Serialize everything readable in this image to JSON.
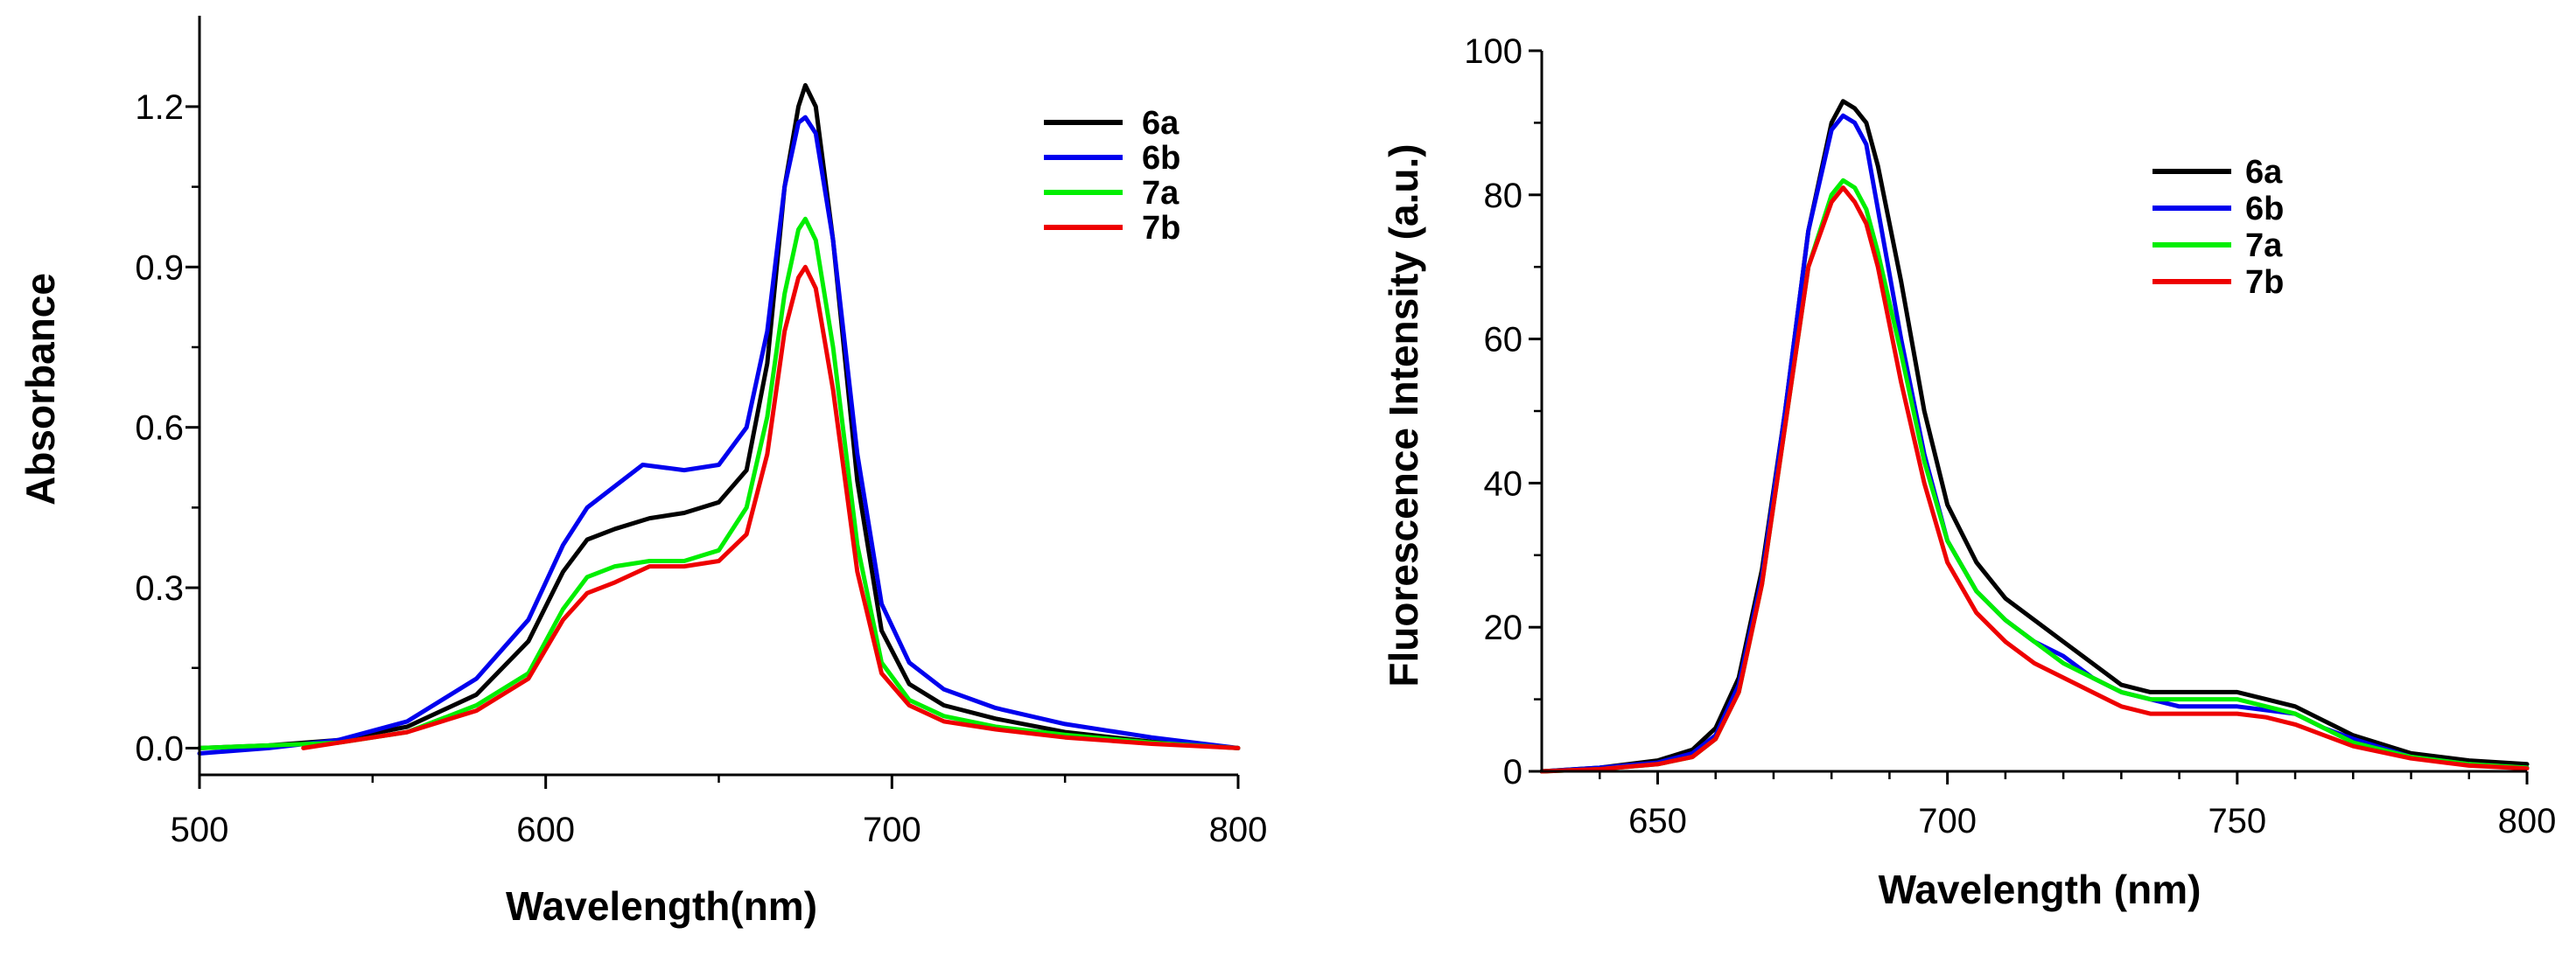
{
  "chart_data": [
    {
      "id": "absorbance",
      "type": "line",
      "title": "",
      "xlabel": "Wavelength(nm)",
      "ylabel": "Absorbance",
      "xlim": [
        500,
        800
      ],
      "ylim": [
        -0.05,
        1.37
      ],
      "xticks": [
        500,
        600,
        700,
        800
      ],
      "xtick_labels": [
        "500",
        "600",
        "700",
        "800"
      ],
      "xminor": [
        550,
        650,
        750
      ],
      "yticks": [
        0.0,
        0.3,
        0.6,
        0.9,
        1.2
      ],
      "ytick_labels": [
        "0.0",
        "0.3",
        "0.6",
        "0.9",
        "1.2"
      ],
      "yminor": [
        0.15,
        0.45,
        0.75,
        1.05
      ],
      "legend_position": "top-right",
      "grid": false,
      "series": [
        {
          "name": "6a",
          "color": "#000000",
          "x": [
            500,
            520,
            540,
            560,
            580,
            595,
            605,
            612,
            620,
            630,
            640,
            650,
            658,
            664,
            669,
            673,
            675,
            678,
            683,
            690,
            697,
            705,
            715,
            730,
            750,
            775,
            800
          ],
          "y": [
            0.0,
            0.005,
            0.015,
            0.04,
            0.1,
            0.2,
            0.33,
            0.39,
            0.41,
            0.43,
            0.44,
            0.46,
            0.52,
            0.72,
            1.05,
            1.2,
            1.24,
            1.2,
            0.95,
            0.5,
            0.22,
            0.12,
            0.08,
            0.055,
            0.03,
            0.012,
            0.0
          ]
        },
        {
          "name": "6b",
          "color": "#0000ee",
          "x": [
            500,
            520,
            540,
            560,
            580,
            595,
            605,
            612,
            620,
            628,
            640,
            650,
            658,
            664,
            669,
            673,
            675,
            678,
            683,
            690,
            697,
            705,
            715,
            730,
            750,
            775,
            800
          ],
          "y": [
            -0.01,
            0.0,
            0.015,
            0.05,
            0.13,
            0.24,
            0.38,
            0.45,
            0.49,
            0.53,
            0.52,
            0.53,
            0.6,
            0.78,
            1.05,
            1.17,
            1.18,
            1.15,
            0.95,
            0.55,
            0.27,
            0.16,
            0.11,
            0.075,
            0.045,
            0.02,
            0.0
          ]
        },
        {
          "name": "7a",
          "color": "#00ee00",
          "x": [
            500,
            520,
            540,
            560,
            580,
            595,
            605,
            612,
            620,
            630,
            640,
            650,
            658,
            664,
            669,
            673,
            675,
            678,
            683,
            690,
            697,
            705,
            715,
            730,
            750,
            775,
            800
          ],
          "y": [
            0.0,
            0.005,
            0.01,
            0.03,
            0.08,
            0.14,
            0.26,
            0.32,
            0.34,
            0.35,
            0.35,
            0.37,
            0.45,
            0.62,
            0.85,
            0.97,
            0.99,
            0.95,
            0.75,
            0.38,
            0.16,
            0.09,
            0.06,
            0.04,
            0.025,
            0.01,
            0.0
          ]
        },
        {
          "name": "7b",
          "color": "#ee0000",
          "x": [
            530,
            540,
            560,
            580,
            595,
            605,
            612,
            620,
            630,
            640,
            650,
            658,
            664,
            669,
            673,
            675,
            678,
            683,
            690,
            697,
            705,
            715,
            730,
            750,
            775,
            800
          ],
          "y": [
            0.0,
            0.01,
            0.03,
            0.07,
            0.13,
            0.24,
            0.29,
            0.31,
            0.34,
            0.34,
            0.35,
            0.4,
            0.55,
            0.78,
            0.88,
            0.9,
            0.86,
            0.67,
            0.33,
            0.14,
            0.08,
            0.05,
            0.035,
            0.02,
            0.008,
            0.0
          ]
        }
      ]
    },
    {
      "id": "fluorescence",
      "type": "line",
      "title": "",
      "xlabel": "Wavelength (nm)",
      "ylabel": "Fluorescence Intensity (a.u.)",
      "xlim": [
        630,
        800
      ],
      "ylim": [
        0,
        100
      ],
      "xticks": [
        650,
        700,
        750,
        800
      ],
      "xtick_labels": [
        "650",
        "700",
        "750",
        "800"
      ],
      "xminor": [
        640,
        660,
        670,
        680,
        690,
        710,
        720,
        730,
        740,
        760,
        770,
        780,
        790
      ],
      "yticks": [
        0,
        20,
        40,
        60,
        80,
        100
      ],
      "ytick_labels": [
        "0",
        "20",
        "40",
        "60",
        "80",
        "100"
      ],
      "yminor": [
        10,
        30,
        50,
        70,
        90
      ],
      "legend_position": "top-right",
      "grid": false,
      "series": [
        {
          "name": "6a",
          "color": "#000000",
          "x": [
            630,
            640,
            650,
            656,
            660,
            664,
            668,
            672,
            676,
            680,
            682,
            684,
            686,
            688,
            692,
            696,
            700,
            705,
            710,
            715,
            720,
            725,
            730,
            735,
            740,
            745,
            750,
            755,
            760,
            765,
            770,
            780,
            790,
            800
          ],
          "y": [
            0,
            0.5,
            1.5,
            3,
            6,
            13,
            28,
            50,
            75,
            90,
            93,
            92,
            90,
            84,
            68,
            50,
            37,
            29,
            24,
            21,
            18,
            15,
            12,
            11,
            11,
            11,
            11,
            10,
            9,
            7,
            5,
            2.5,
            1.5,
            1
          ]
        },
        {
          "name": "6b",
          "color": "#0000ee",
          "x": [
            630,
            640,
            650,
            656,
            660,
            664,
            668,
            672,
            676,
            680,
            682,
            684,
            686,
            688,
            692,
            696,
            700,
            705,
            710,
            715,
            720,
            725,
            730,
            735,
            740,
            745,
            750,
            755,
            760,
            765,
            770,
            780,
            790,
            800
          ],
          "y": [
            0,
            0.5,
            1.2,
            2.5,
            5,
            12,
            27,
            50,
            75,
            89,
            91,
            90,
            87,
            78,
            60,
            44,
            32,
            25,
            21,
            18,
            16,
            13,
            11,
            10,
            9,
            9,
            9,
            8.5,
            8,
            6,
            4.5,
            2,
            1,
            0.5
          ]
        },
        {
          "name": "7a",
          "color": "#00ee00",
          "x": [
            630,
            640,
            650,
            656,
            660,
            664,
            668,
            672,
            676,
            680,
            682,
            684,
            686,
            688,
            692,
            696,
            700,
            705,
            710,
            715,
            720,
            725,
            730,
            735,
            740,
            745,
            750,
            755,
            760,
            765,
            770,
            780,
            790,
            800
          ],
          "y": [
            0,
            0.3,
            1,
            2,
            4.5,
            11,
            26,
            48,
            70,
            80,
            82,
            81,
            78,
            72,
            58,
            43,
            32,
            25,
            21,
            18,
            15,
            13,
            11,
            10,
            10,
            10,
            10,
            9,
            8,
            6,
            4,
            2,
            1,
            0.5
          ]
        },
        {
          "name": "7b",
          "color": "#ee0000",
          "x": [
            630,
            640,
            650,
            656,
            660,
            664,
            668,
            672,
            676,
            680,
            682,
            684,
            686,
            688,
            692,
            696,
            700,
            705,
            710,
            715,
            720,
            725,
            730,
            735,
            740,
            745,
            750,
            755,
            760,
            765,
            770,
            780,
            790,
            800
          ],
          "y": [
            0,
            0.3,
            1,
            2,
            4.5,
            11,
            26,
            48,
            70,
            79,
            81,
            79,
            76,
            70,
            54,
            40,
            29,
            22,
            18,
            15,
            13,
            11,
            9,
            8,
            8,
            8,
            8,
            7.5,
            6.5,
            5,
            3.5,
            1.8,
            0.8,
            0.4
          ]
        }
      ]
    }
  ]
}
